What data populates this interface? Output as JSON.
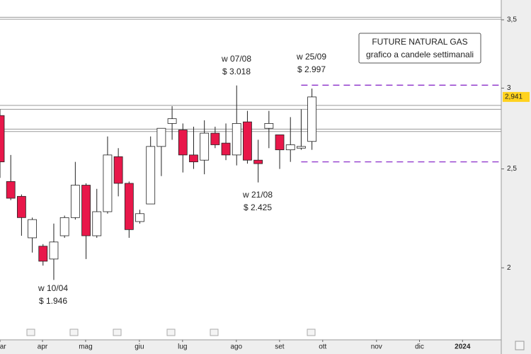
{
  "chart_data": {
    "type": "candlestick",
    "box_title": "FUTURE NATURAL GAS",
    "box_subtitle": "grafico a candele settimanali",
    "x": [
      0,
      1,
      2,
      3,
      4,
      5,
      6,
      7,
      8,
      9,
      10,
      11,
      12,
      13,
      14,
      15,
      16,
      17,
      18,
      19,
      20,
      21,
      22,
      23,
      24,
      25,
      26,
      27,
      28,
      29
    ],
    "open": [
      2.82,
      2.43,
      2.35,
      2.14,
      2.1,
      2.04,
      2.15,
      2.24,
      2.41,
      2.15,
      2.27,
      2.57,
      2.42,
      2.22,
      2.31,
      2.63,
      2.77,
      2.73,
      2.58,
      2.55,
      2.71,
      2.65,
      2.58,
      2.78,
      2.55,
      2.74,
      2.7,
      2.61,
      2.62,
      2.66
    ],
    "high": [
      2.86,
      2.58,
      2.36,
      2.24,
      2.11,
      2.21,
      2.25,
      2.54,
      2.42,
      2.39,
      2.69,
      2.62,
      2.43,
      2.28,
      2.69,
      2.74,
      2.88,
      2.77,
      2.75,
      2.79,
      2.75,
      2.77,
      3.018,
      2.85,
      2.67,
      2.85,
      2.7,
      2.81,
      2.86,
      2.997
    ],
    "low": [
      2.45,
      2.33,
      2.15,
      2.07,
      2.01,
      1.946,
      2.14,
      2.23,
      2.04,
      2.14,
      2.26,
      2.35,
      2.14,
      2.21,
      2.31,
      2.46,
      2.67,
      2.48,
      2.5,
      2.47,
      2.62,
      2.55,
      2.52,
      2.53,
      2.425,
      2.62,
      2.5,
      2.54,
      2.61,
      2.61
    ],
    "close": [
      2.54,
      2.34,
      2.24,
      2.23,
      2.03,
      2.12,
      2.24,
      2.41,
      2.15,
      2.27,
      2.58,
      2.42,
      2.18,
      2.26,
      2.63,
      2.74,
      2.8,
      2.58,
      2.54,
      2.71,
      2.64,
      2.58,
      2.77,
      2.55,
      2.53,
      2.77,
      2.61,
      2.64,
      2.63,
      2.941
    ],
    "up_color": "#ffffff",
    "down_color": "#e8174a",
    "xlim": [
      0,
      46.6
    ],
    "xticks": [
      {
        "value": 0,
        "label": "mar"
      },
      {
        "value": 3.95,
        "label": "apr"
      },
      {
        "value": 7.96,
        "label": "mag"
      },
      {
        "value": 12.96,
        "label": "giu"
      },
      {
        "value": 16.97,
        "label": "lug"
      },
      {
        "value": 21.97,
        "label": "ago"
      },
      {
        "value": 25.99,
        "label": "set"
      },
      {
        "value": 30,
        "label": "ott"
      },
      {
        "value": 35,
        "label": "nov"
      },
      {
        "value": 39,
        "label": "dic"
      },
      {
        "value": 43,
        "label": "2024"
      }
    ],
    "ylim": [
      1.7,
      3.66
    ],
    "log_scale": true,
    "yticks": [
      {
        "value": 3.5,
        "label": "3,5"
      },
      3,
      {
        "value": 2.5,
        "label": "2,5"
      },
      2
    ],
    "last_price": {
      "value": 2.941,
      "label": "2,941"
    },
    "levels": [
      3.52,
      3.505,
      2.885,
      2.86,
      2.735,
      2.72
    ],
    "dashed_levels": [
      3.02,
      2.54
    ],
    "annotations": [
      {
        "week": "w 10/04",
        "price": "$ 1.946"
      },
      {
        "week": "w 07/08",
        "price": "$ 3.018"
      },
      {
        "week": "w 21/08",
        "price": "$ 2.425"
      },
      {
        "week": "w 25/09",
        "price": "$ 2.997"
      }
    ]
  }
}
